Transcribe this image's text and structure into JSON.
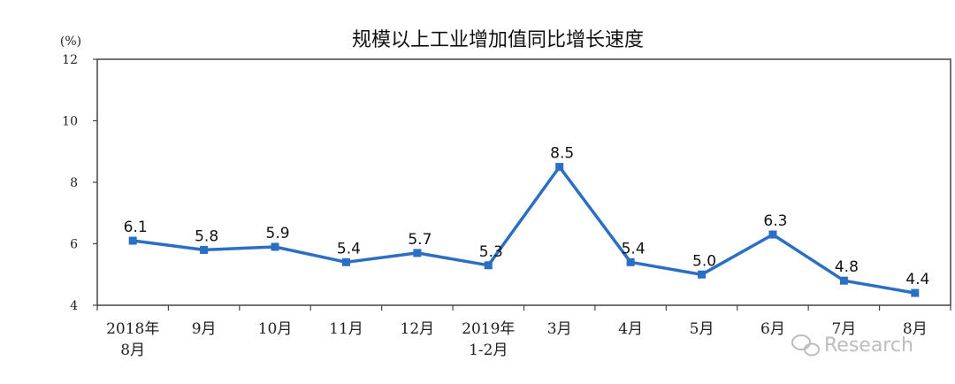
{
  "colors": {
    "line": "#2a6fc4",
    "marker": "#2a6fc4",
    "axis": "#444444",
    "watermark": "#bdbdbd"
  },
  "watermark": {
    "icon": "wechat-icon",
    "text": "Research"
  },
  "chart_data": {
    "type": "line",
    "title": "规模以上工业增加值同比增长速度",
    "unit": "(%)",
    "ylim": [
      4,
      12
    ],
    "yticks": [
      "4",
      "6",
      "8",
      "10",
      "12"
    ],
    "grid": false,
    "categories": [
      [
        "2018年",
        "8月"
      ],
      [
        "9月"
      ],
      [
        "10月"
      ],
      [
        "11月"
      ],
      [
        "12月"
      ],
      [
        "2019年",
        "1-2月"
      ],
      [
        "3月"
      ],
      [
        "4月"
      ],
      [
        "5月"
      ],
      [
        "6月"
      ],
      [
        "7月"
      ],
      [
        "8月"
      ]
    ],
    "values": [
      6.1,
      5.8,
      5.9,
      5.4,
      5.7,
      5.3,
      8.5,
      5.4,
      5.0,
      6.3,
      4.8,
      4.4
    ],
    "data_labels": [
      "6.1",
      "5.8",
      "5.9",
      "5.4",
      "5.7",
      "5.3",
      "8.5",
      "5.4",
      "5.0",
      "6.3",
      "4.8",
      "4.4"
    ]
  }
}
